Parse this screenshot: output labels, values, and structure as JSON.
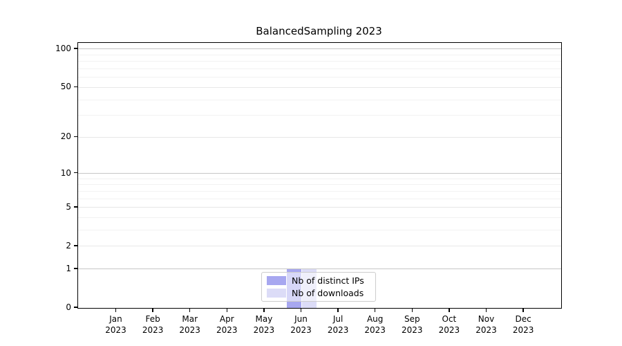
{
  "title": "BalancedSampling 2023",
  "legend": {
    "items": [
      {
        "label": "Nb of distinct IPs",
        "color": "#a7a7f0"
      },
      {
        "label": "Nb of downloads",
        "color": "#dcdcf7"
      }
    ]
  },
  "chart_data": {
    "type": "bar",
    "title": "BalancedSampling 2023",
    "categories": [
      "Jan",
      "Feb",
      "Mar",
      "Apr",
      "May",
      "Jun",
      "Jul",
      "Aug",
      "Sep",
      "Oct",
      "Nov",
      "Dec"
    ],
    "year": "2023",
    "series": [
      {
        "name": "Nb of distinct IPs",
        "color": "#a7a7f0",
        "values": [
          0,
          0,
          0,
          0,
          0,
          1,
          0,
          0,
          0,
          0,
          0,
          0
        ]
      },
      {
        "name": "Nb of downloads",
        "color": "#dcdcf7",
        "values": [
          0,
          0,
          0,
          0,
          0,
          1,
          0,
          0,
          0,
          0,
          0,
          0
        ]
      }
    ],
    "xlabel": "",
    "ylabel": "",
    "yscale": "log10(value+1)",
    "ylim": [
      0,
      112
    ],
    "yticks": [
      0,
      1,
      2,
      5,
      10,
      20,
      50,
      100
    ],
    "decade_gridlines": [
      1,
      10,
      100
    ],
    "mid_gridlines": [
      2,
      5,
      20,
      50
    ],
    "minor_gridlines": [
      3,
      4,
      6,
      7,
      8,
      9,
      30,
      40,
      60,
      70,
      80,
      90
    ],
    "grid": "horizontal",
    "legend_position": "lower center"
  }
}
